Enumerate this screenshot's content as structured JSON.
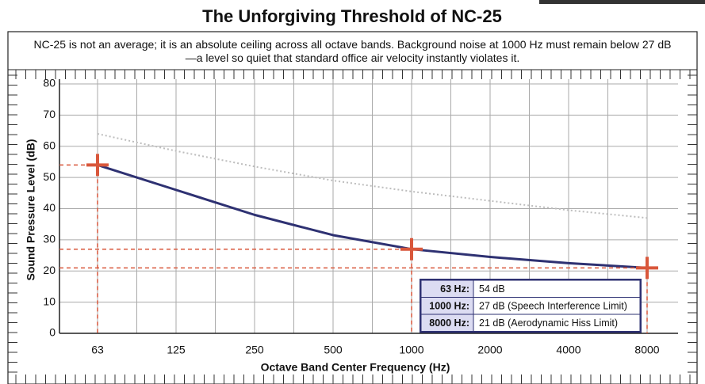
{
  "chart_data": {
    "type": "line",
    "title": "The Unforgiving Threshold of NC-25",
    "subtitle": "NC-25 is not an average; it is an absolute ceiling across all octave bands. Background noise at 1000 Hz must remain below 27 dB—a level so quiet that standard office air velocity instantly violates it.",
    "x_label": "Octave Band Center Frequency (Hz)",
    "y_label": "Sound Pressure Level (dB)",
    "categories": [
      "63",
      "125",
      "250",
      "500",
      "1000",
      "2000",
      "4000",
      "8000"
    ],
    "series": [
      {
        "color": "#2e3172",
        "style": "solid",
        "values": [
          54,
          46,
          38,
          31.5,
          27,
          24.5,
          22.5,
          21
        ]
      },
      {
        "color": "#bdbdbd",
        "style": "dotted",
        "values": [
          64,
          58.5,
          53.5,
          49,
          45.5,
          42.5,
          39.5,
          37
        ]
      }
    ],
    "ylim": [
      0,
      80
    ],
    "yticks": [
      0,
      10,
      20,
      30,
      40,
      50,
      60,
      70,
      80
    ],
    "grid": true,
    "annotations": [
      {
        "x": "63",
        "label": "63 Hz:",
        "value": 54,
        "value_label": "54 dB"
      },
      {
        "x": "1000",
        "label": "1000 Hz:",
        "value": 27,
        "value_label": "27 dB (Speech Interference Limit)"
      },
      {
        "x": "8000",
        "label": "8000 Hz:",
        "value": 21,
        "value_label": "21 dB (Aerodynamic Hiss Limit)"
      }
    ],
    "annotation_color": "#d9573b"
  }
}
